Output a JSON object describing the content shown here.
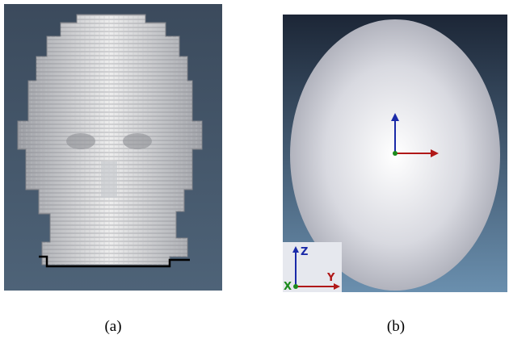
{
  "panels": [
    {
      "caption": "(a)"
    },
    {
      "caption": "(b)",
      "axes": {
        "z": "Z",
        "y": "Y",
        "x": "X"
      }
    }
  ]
}
